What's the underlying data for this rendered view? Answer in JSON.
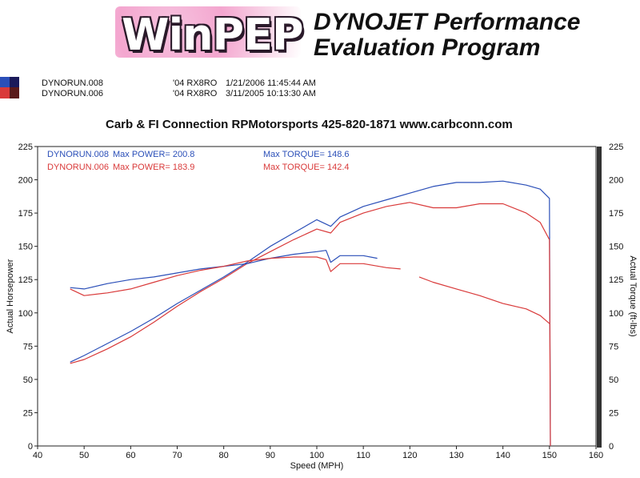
{
  "header": {
    "logo_text": "WinPEP",
    "title_line1": "DYNOJET Performance",
    "title_line2": "Evaluation Program"
  },
  "runs": [
    {
      "name": "DYNORUN.008",
      "car": "'04 RX8RO",
      "date": "1/21/2006 11:45:44 AM",
      "color": "#2b4fb8"
    },
    {
      "name": "DYNORUN.006",
      "car": "'04 RX8RO",
      "date": "3/11/2005 10:13:30 AM",
      "color": "#d93a3a"
    }
  ],
  "shop_line": "Carb & FI Connection  RPMotorsports   425-820-1871  www.carbconn.com",
  "chart_data": {
    "type": "line",
    "xlabel": "Speed (MPH)",
    "ylabel_left": "Actual Horsepower",
    "ylabel_right": "Actual Torque (ft-lbs)",
    "xlim": [
      40,
      160
    ],
    "ylim": [
      0,
      225
    ],
    "xticks": [
      40,
      50,
      60,
      70,
      80,
      90,
      100,
      110,
      120,
      130,
      140,
      150,
      160
    ],
    "yticks": [
      0,
      25,
      50,
      75,
      100,
      125,
      150,
      175,
      200,
      225
    ],
    "grid": false,
    "annotations": [
      {
        "label": "DYNORUN.008",
        "text": "Max POWER= 200.8",
        "torque_text": "Max TORQUE= 148.6",
        "color": "#2b4fb8"
      },
      {
        "label": "DYNORUN.006",
        "text": "Max POWER= 183.9",
        "torque_text": "Max TORQUE= 142.4",
        "color": "#d93a3a"
      }
    ],
    "series": [
      {
        "name": "DYNORUN.008",
        "measure": "power",
        "color": "#2b4fb8",
        "x": [
          47,
          50,
          55,
          60,
          65,
          70,
          75,
          80,
          85,
          90,
          95,
          100,
          103,
          105,
          110,
          115,
          120,
          125,
          130,
          135,
          140,
          145,
          148,
          150,
          150.2
        ],
        "y": [
          63,
          68,
          77,
          86,
          96,
          107,
          117,
          127,
          138,
          150,
          160,
          170,
          165,
          172,
          180,
          185,
          190,
          195,
          198,
          198,
          199,
          196,
          193,
          186,
          0
        ]
      },
      {
        "name": "DYNORUN.006",
        "measure": "power",
        "color": "#d93a3a",
        "x": [
          47,
          50,
          55,
          60,
          65,
          70,
          75,
          80,
          85,
          90,
          95,
          100,
          103,
          105,
          110,
          115,
          120,
          125,
          130,
          135,
          140,
          145,
          148,
          150,
          150.2
        ],
        "y": [
          62,
          65,
          73,
          82,
          93,
          105,
          116,
          126,
          137,
          146,
          155,
          163,
          160,
          168,
          175,
          180,
          183,
          179,
          179,
          182,
          182,
          175,
          168,
          155,
          0
        ]
      },
      {
        "name": "DYNORUN.008",
        "measure": "torque",
        "color": "#2b4fb8",
        "x": [
          47,
          50,
          55,
          60,
          65,
          70,
          75,
          80,
          85,
          90,
          95,
          100,
          102,
          103,
          105,
          110,
          113
        ],
        "y": [
          119,
          118,
          122,
          125,
          127,
          130,
          133,
          135,
          137,
          141,
          144,
          146,
          147,
          138,
          143,
          143,
          141
        ]
      },
      {
        "name": "DYNORUN.006",
        "measure": "torque",
        "color": "#d93a3a",
        "x": [
          47,
          50,
          55,
          60,
          65,
          70,
          75,
          80,
          85,
          90,
          95,
          100,
          102,
          103,
          105,
          110,
          115,
          118
        ],
        "y": [
          118,
          113,
          115,
          118,
          123,
          128,
          132,
          135,
          139,
          141,
          142,
          142,
          140,
          131,
          137,
          137,
          134,
          133
        ]
      },
      {
        "name": "DYNORUN.006",
        "measure": "torque-late",
        "color": "#d93a3a",
        "x": [
          122,
          125,
          130,
          135,
          140,
          145,
          148,
          150
        ],
        "y": [
          127,
          123,
          118,
          113,
          107,
          103,
          98,
          92
        ]
      }
    ]
  }
}
